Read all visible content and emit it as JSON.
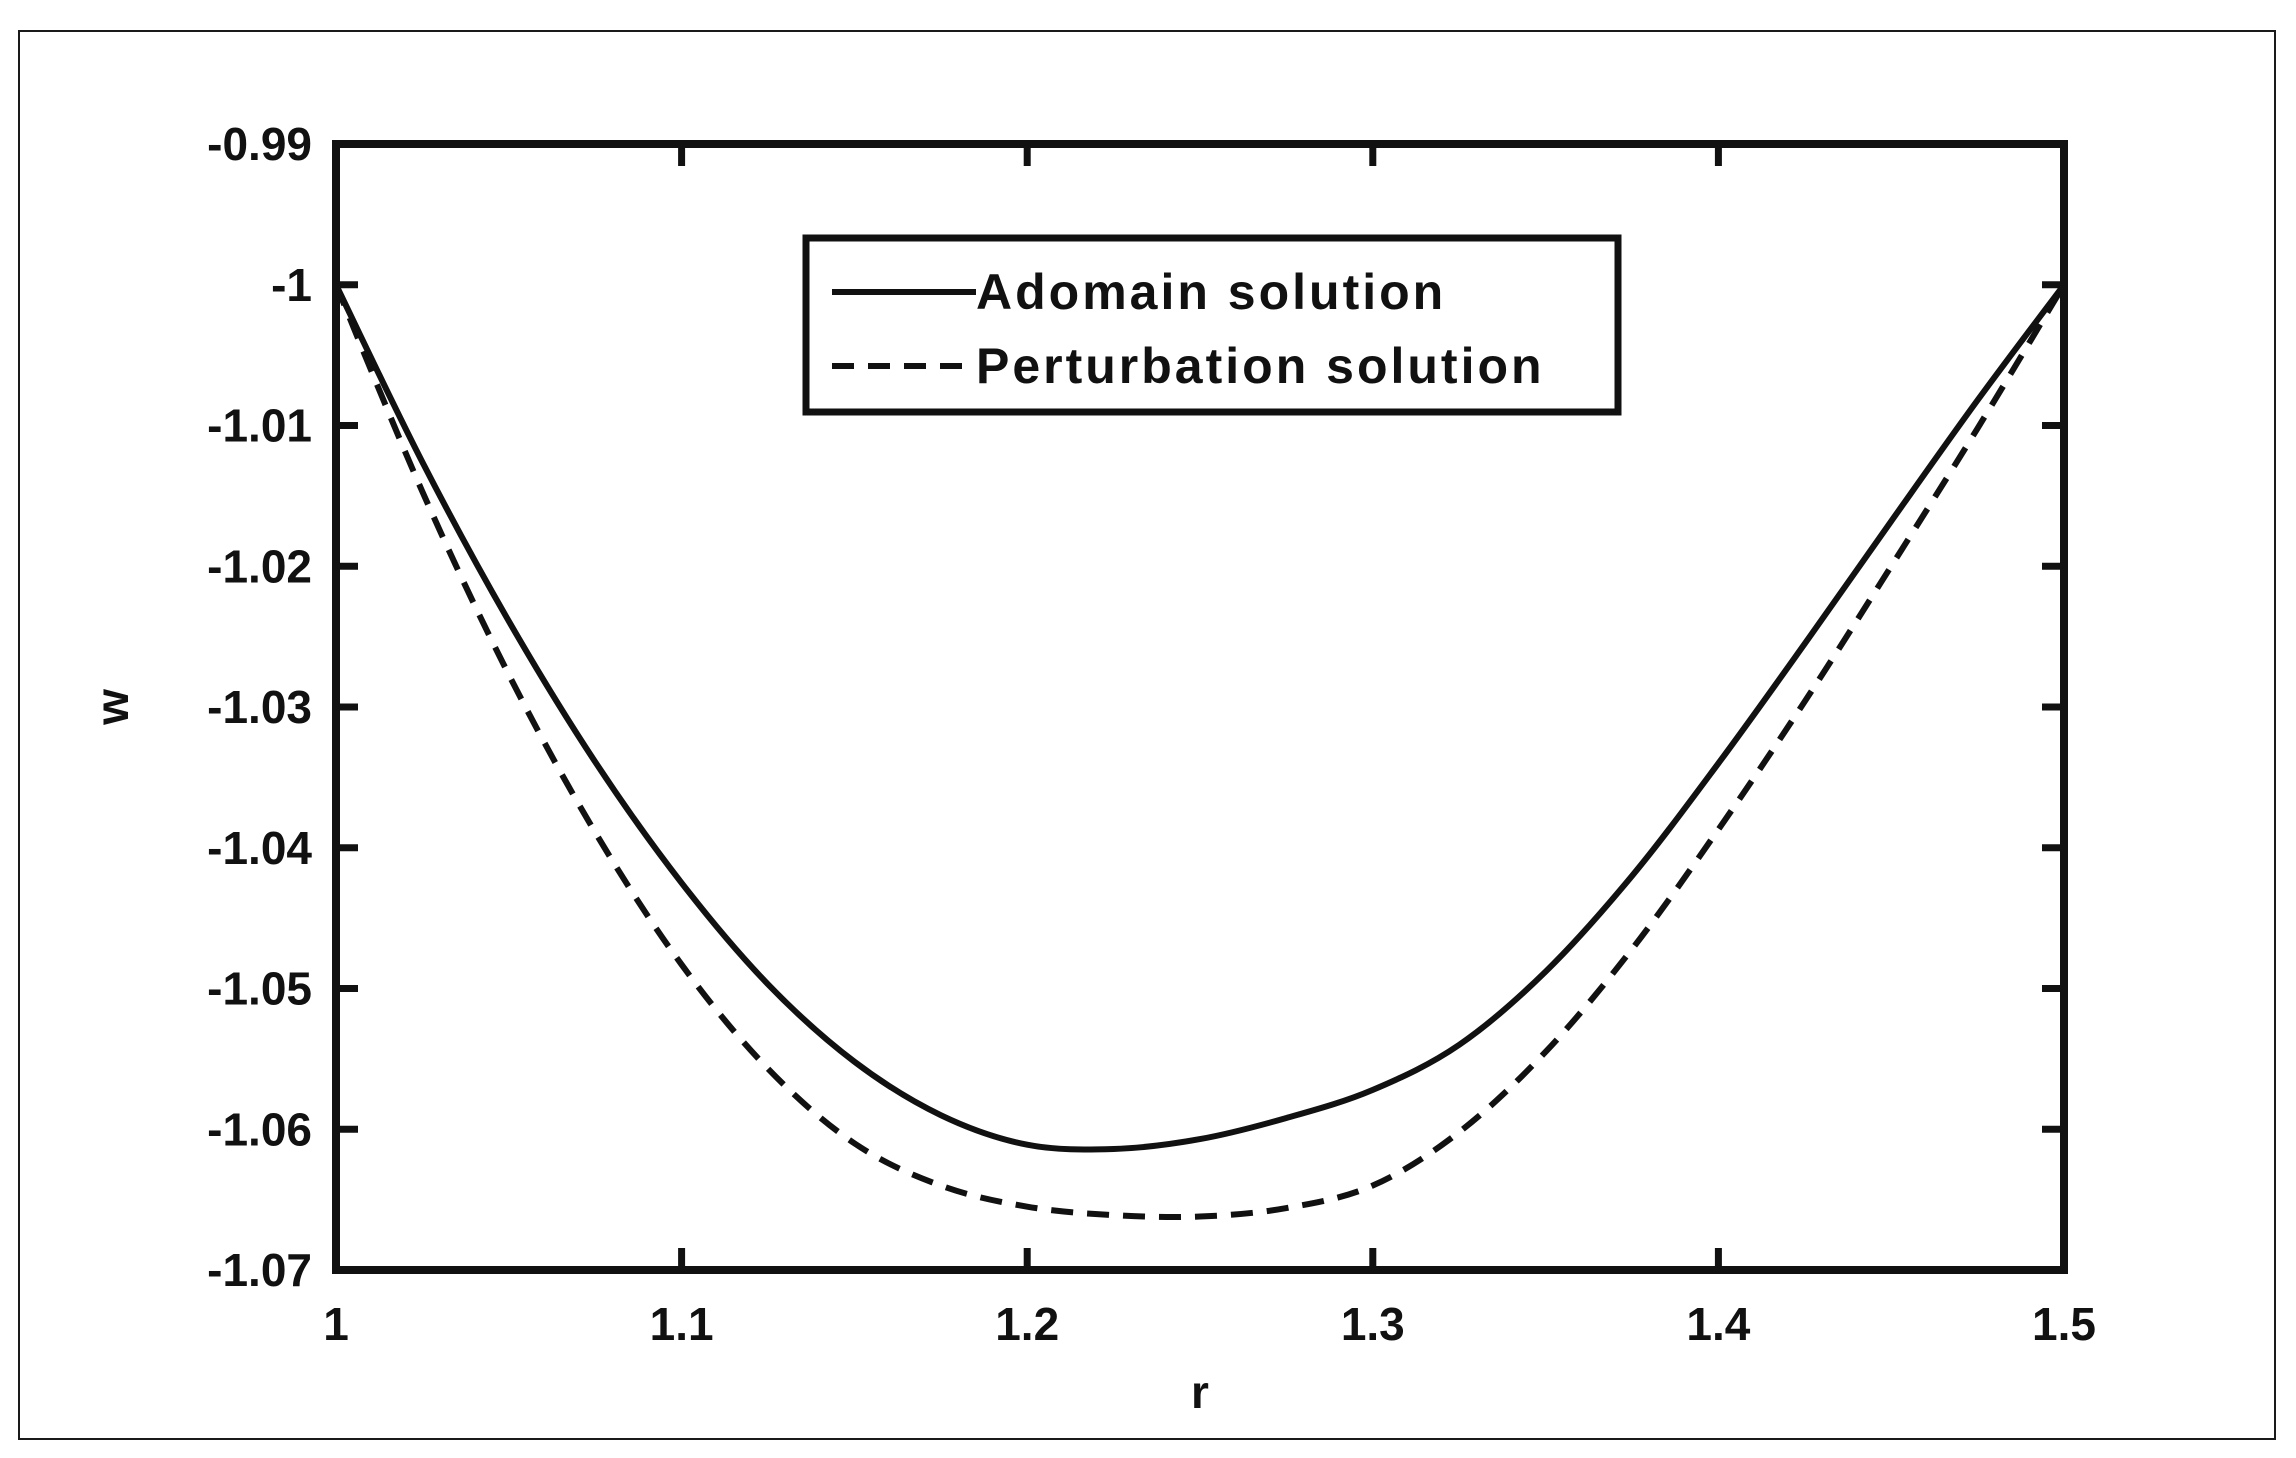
{
  "chart_data": {
    "type": "line",
    "title": "",
    "xlabel": "r",
    "ylabel": "w",
    "xlim": [
      1,
      1.5
    ],
    "ylim": [
      -1.07,
      -0.99
    ],
    "x_ticks": [
      1,
      1.1,
      1.2,
      1.3,
      1.4,
      1.5
    ],
    "x_tick_labels": [
      "1",
      "1.1",
      "1.2",
      "1.3",
      "1.4",
      "1.5"
    ],
    "y_ticks": [
      -0.99,
      -1,
      -1.01,
      -1.02,
      -1.03,
      -1.04,
      -1.05,
      -1.06,
      -1.07
    ],
    "y_tick_labels": [
      "-0.99",
      "-1",
      "-1.01",
      "-1.02",
      "-1.03",
      "-1.04",
      "-1.05",
      "-1.06",
      "-1.07"
    ],
    "grid": false,
    "legend_position": "top-center",
    "series": [
      {
        "name": "Adomain solution",
        "style": "solid",
        "color": "#111111",
        "x": [
          1.0,
          1.025,
          1.05,
          1.075,
          1.1,
          1.125,
          1.15,
          1.175,
          1.2,
          1.225,
          1.25,
          1.275,
          1.3,
          1.325,
          1.35,
          1.375,
          1.4,
          1.425,
          1.45,
          1.475,
          1.5
        ],
        "y": [
          -1.0,
          -1.0126,
          -1.0239,
          -1.0339,
          -1.0425,
          -1.0497,
          -1.0552,
          -1.059,
          -1.0611,
          -1.0614,
          -1.0607,
          -1.0592,
          -1.0572,
          -1.054,
          -1.0488,
          -1.042,
          -1.034,
          -1.0255,
          -1.0168,
          -1.0082,
          -1.0
        ]
      },
      {
        "name": "Perturbation solution",
        "style": "dashed",
        "color": "#111111",
        "x": [
          1.0,
          1.025,
          1.05,
          1.075,
          1.1,
          1.125,
          1.15,
          1.175,
          1.2,
          1.225,
          1.25,
          1.275,
          1.3,
          1.325,
          1.35,
          1.375,
          1.4,
          1.425,
          1.45,
          1.475,
          1.5
        ],
        "y": [
          -1.0,
          -1.0147,
          -1.0277,
          -1.0389,
          -1.0483,
          -1.0557,
          -1.061,
          -1.064,
          -1.0655,
          -1.0661,
          -1.0662,
          -1.0656,
          -1.064,
          -1.0602,
          -1.0545,
          -1.0472,
          -1.0387,
          -1.0296,
          -1.02,
          -1.0102,
          -1.0
        ]
      }
    ]
  }
}
